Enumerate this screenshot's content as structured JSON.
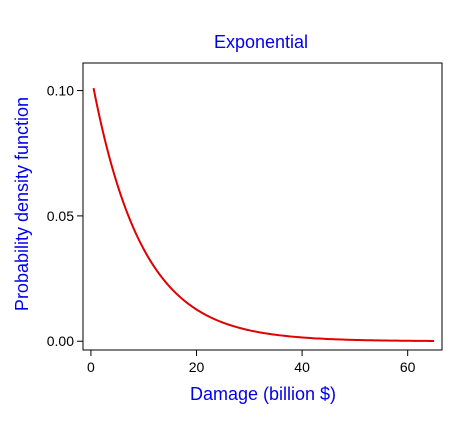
{
  "chart_data": {
    "type": "line",
    "title": "Exponential",
    "xlabel": "Damage (billion $)",
    "ylabel": "Probability density function",
    "xlim": [
      -1.5,
      66.5
    ],
    "ylim": [
      -0.0035,
      0.111
    ],
    "xticks": [
      0,
      20,
      40,
      60
    ],
    "xtick_labels": [
      "0",
      "20",
      "40",
      "60"
    ],
    "yticks": [
      0.0,
      0.05,
      0.1
    ],
    "ytick_labels": [
      "0.00",
      "0.05",
      "0.10"
    ],
    "grid": false,
    "colors": {
      "text": "#0000ee",
      "line": "#e00000",
      "axes": "#000000"
    },
    "series": [
      {
        "rate": 0.1065,
        "x": [
          0.5,
          2.5,
          5,
          7.5,
          10,
          12.5,
          15,
          17.5,
          20,
          22.5,
          25,
          27.5,
          30,
          35,
          40,
          45,
          50,
          55,
          60,
          65
        ],
        "values": [
          0.1012,
          0.0818,
          0.0627,
          0.0481,
          0.0368,
          0.0282,
          0.0216,
          0.0166,
          0.0127,
          0.0097,
          0.0075,
          0.0057,
          0.0044,
          0.0026,
          0.0015,
          0.0009,
          0.0005,
          0.0003,
          0.0002,
          0.0001
        ]
      }
    ]
  }
}
